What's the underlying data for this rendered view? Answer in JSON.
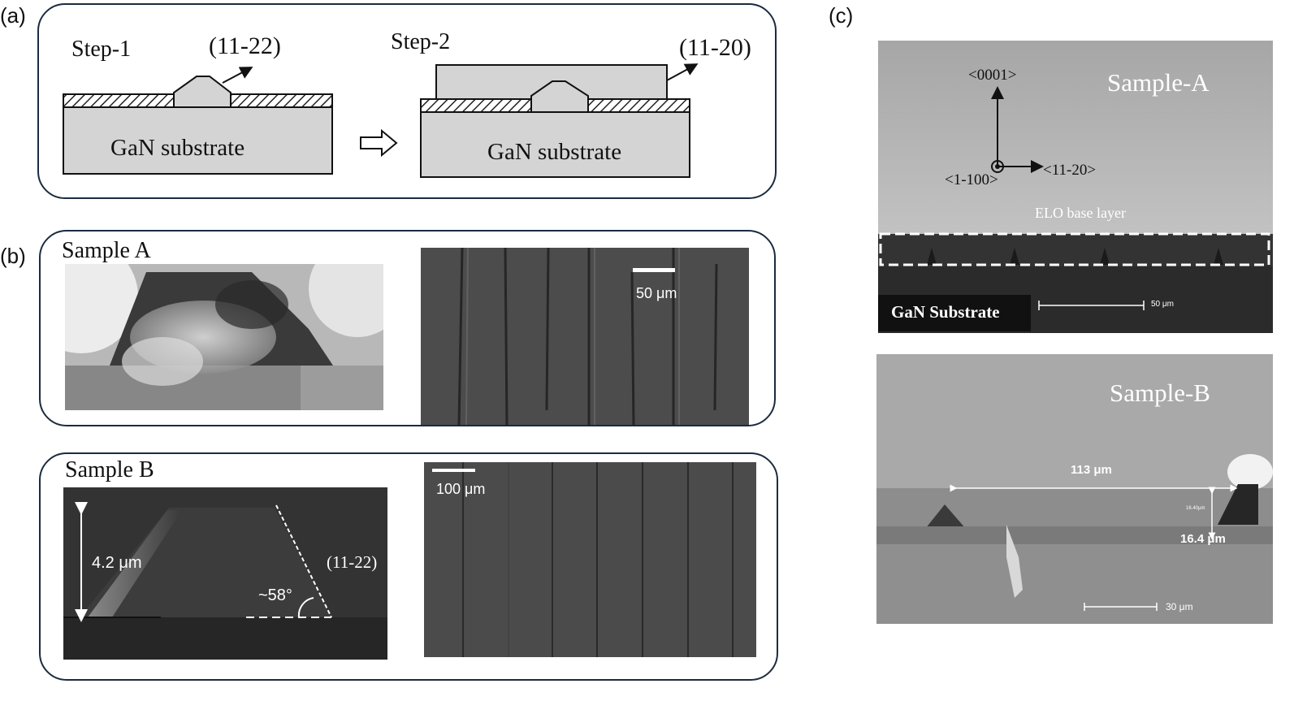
{
  "panels": {
    "a": {
      "label": "(a)",
      "step1": "Step-1",
      "step2": "Step-2",
      "facet1": "(11-22)",
      "facet2": "(11-20)",
      "substrate1": "GaN substrate",
      "substrate2": "GaN substrate"
    },
    "b": {
      "label": "(b)",
      "sample_a": "Sample A",
      "sample_b": "Sample B",
      "scale_a": "50 μm",
      "scale_b": "100 μm",
      "height": "4.2 μm",
      "angle": "~58°",
      "facet": "(11-22)"
    },
    "c": {
      "label": "(c)",
      "sample_a": "Sample-A",
      "sample_b": "Sample-B",
      "dir_0001": "<0001>",
      "dir_1100": "<1-100>",
      "dir_1120": "<11-20>",
      "elo": "ELO base layer",
      "substrate": "GaN Substrate",
      "scale_a": "50 μm",
      "width": "113 μm",
      "small_label": "16.40μm",
      "thickness": "16.4 μm",
      "scale_b": "30 μm"
    }
  },
  "colors": {
    "frame": "#1c2b40",
    "hatch": "#222222",
    "substrate_fill": "#d4d4d4"
  }
}
